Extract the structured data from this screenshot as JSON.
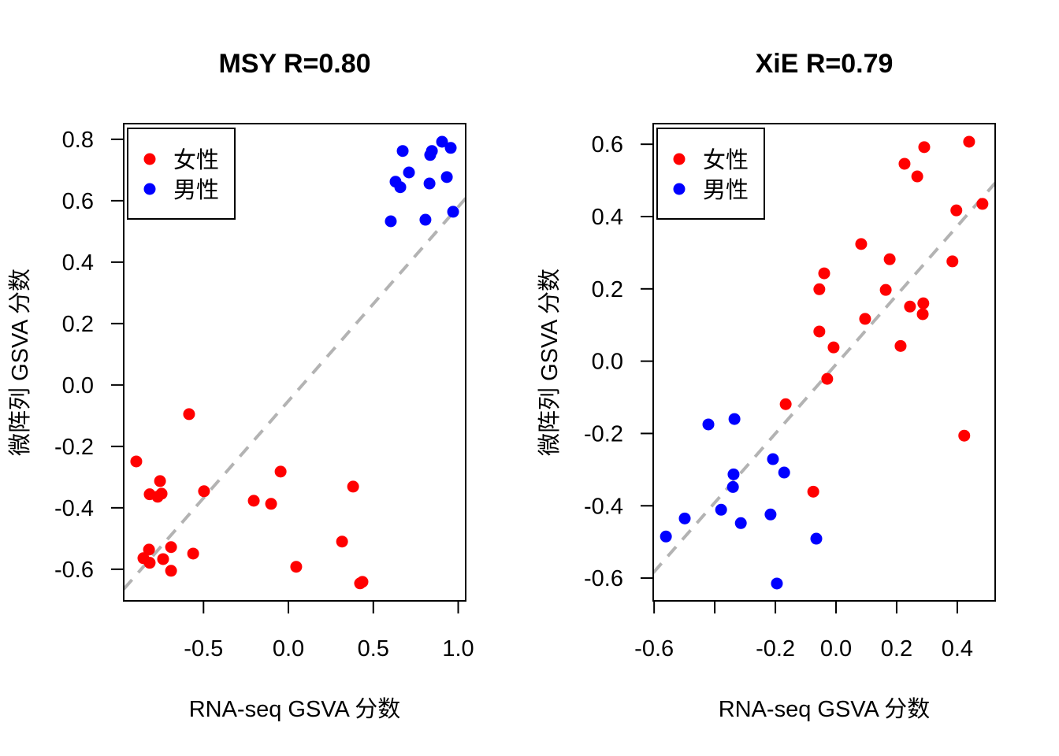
{
  "colors": {
    "female": "#ff0000",
    "male": "#0000ff",
    "fit_line": "#b3b3b3"
  },
  "chart_data": [
    {
      "type": "scatter",
      "title": "MSY R=0.80",
      "xlabel": "RNA-seq GSVA 分数",
      "ylabel": "微阵列 GSVA 分数",
      "xlim": [
        -0.97,
        1.044
      ],
      "ylim": [
        -0.703,
        0.851
      ],
      "xticks": [
        -0.5,
        0.0,
        0.5,
        1.0
      ],
      "xtick_labels": [
        "-0.5",
        "0.0",
        "0.5",
        "1.0"
      ],
      "yticks": [
        -0.6,
        -0.4,
        -0.2,
        0.0,
        0.2,
        0.4,
        0.6,
        0.8
      ],
      "ytick_labels": [
        "-0.6",
        "-0.4",
        "-0.2",
        "0.0",
        "0.2",
        "0.4",
        "0.6",
        "0.8"
      ],
      "grid": false,
      "legend": {
        "position": "top-left",
        "entries": [
          "女性",
          "男性"
        ]
      },
      "fit_line": {
        "intercept": -0.052,
        "slope": 0.632,
        "style": "dashed"
      },
      "series": [
        {
          "name": "女性",
          "color": "#ff0000",
          "points": [
            [
              -0.896,
              -0.249
            ],
            [
              -0.585,
              -0.095
            ],
            [
              -0.817,
              -0.356
            ],
            [
              -0.756,
              -0.313
            ],
            [
              -0.747,
              -0.354
            ],
            [
              -0.77,
              -0.364
            ],
            [
              -0.497,
              -0.346
            ],
            [
              -0.821,
              -0.536
            ],
            [
              -0.854,
              -0.564
            ],
            [
              -0.817,
              -0.579
            ],
            [
              -0.738,
              -0.567
            ],
            [
              -0.691,
              -0.528
            ],
            [
              -0.691,
              -0.605
            ],
            [
              -0.561,
              -0.549
            ],
            [
              -0.204,
              -0.377
            ],
            [
              -0.102,
              -0.387
            ],
            [
              -0.046,
              -0.282
            ],
            [
              0.046,
              -0.592
            ],
            [
              0.381,
              -0.331
            ],
            [
              0.316,
              -0.51
            ],
            [
              0.422,
              -0.646
            ],
            [
              0.436,
              -0.641
            ]
          ]
        },
        {
          "name": "男性",
          "color": "#0000ff",
          "points": [
            [
              0.673,
              0.762
            ],
            [
              0.905,
              0.792
            ],
            [
              0.956,
              0.772
            ],
            [
              0.845,
              0.762
            ],
            [
              0.835,
              0.749
            ],
            [
              0.71,
              0.692
            ],
            [
              0.631,
              0.662
            ],
            [
              0.659,
              0.644
            ],
            [
              0.831,
              0.656
            ],
            [
              0.933,
              0.677
            ],
            [
              0.97,
              0.564
            ],
            [
              0.603,
              0.533
            ],
            [
              0.807,
              0.538
            ]
          ]
        }
      ]
    },
    {
      "type": "scatter",
      "title": "XiE R=0.79",
      "xlabel": "RNA-seq GSVA 分数",
      "ylabel": "微阵列 GSVA 分数",
      "xlim": [
        -0.603,
        0.525
      ],
      "ylim": [
        -0.663,
        0.657
      ],
      "xticks": [
        -0.6,
        -0.4,
        -0.2,
        0.0,
        0.2,
        0.4
      ],
      "xtick_labels": [
        "-0.6",
        "",
        "-0.2",
        "0.0",
        "0.2",
        "0.4"
      ],
      "yticks": [
        -0.6,
        -0.4,
        -0.2,
        0.0,
        0.2,
        0.4,
        0.6
      ],
      "ytick_labels": [
        "-0.6",
        "-0.4",
        "-0.2",
        "0.0",
        "0.2",
        "0.4",
        "0.6"
      ],
      "grid": false,
      "legend": {
        "position": "top-left",
        "entries": [
          "女性",
          "男性"
        ]
      },
      "fit_line": {
        "intercept": -0.009,
        "slope": 0.956,
        "style": "dashed"
      },
      "series": [
        {
          "name": "女性",
          "color": "#ff0000",
          "points": [
            [
              0.439,
              0.607
            ],
            [
              0.291,
              0.592
            ],
            [
              0.226,
              0.546
            ],
            [
              0.268,
              0.511
            ],
            [
              0.397,
              0.417
            ],
            [
              0.483,
              0.435
            ],
            [
              0.083,
              0.324
            ],
            [
              0.177,
              0.282
            ],
            [
              0.384,
              0.276
            ],
            [
              -0.039,
              0.243
            ],
            [
              -0.055,
              0.199
            ],
            [
              0.164,
              0.197
            ],
            [
              0.244,
              0.151
            ],
            [
              0.288,
              0.16
            ],
            [
              0.286,
              0.13
            ],
            [
              0.096,
              0.117
            ],
            [
              -0.055,
              0.082
            ],
            [
              -0.008,
              0.038
            ],
            [
              0.213,
              0.042
            ],
            [
              -0.029,
              -0.049
            ],
            [
              -0.166,
              -0.119
            ],
            [
              0.423,
              -0.206
            ],
            [
              -0.075,
              -0.361
            ]
          ]
        },
        {
          "name": "男性",
          "color": "#0000ff",
          "points": [
            [
              -0.421,
              -0.175
            ],
            [
              -0.335,
              -0.16
            ],
            [
              -0.208,
              -0.271
            ],
            [
              -0.171,
              -0.308
            ],
            [
              -0.338,
              -0.313
            ],
            [
              -0.34,
              -0.348
            ],
            [
              -0.379,
              -0.411
            ],
            [
              -0.314,
              -0.448
            ],
            [
              -0.216,
              -0.424
            ],
            [
              -0.499,
              -0.435
            ],
            [
              -0.561,
              -0.485
            ],
            [
              -0.065,
              -0.491
            ],
            [
              -0.195,
              -0.615
            ]
          ]
        }
      ]
    }
  ]
}
